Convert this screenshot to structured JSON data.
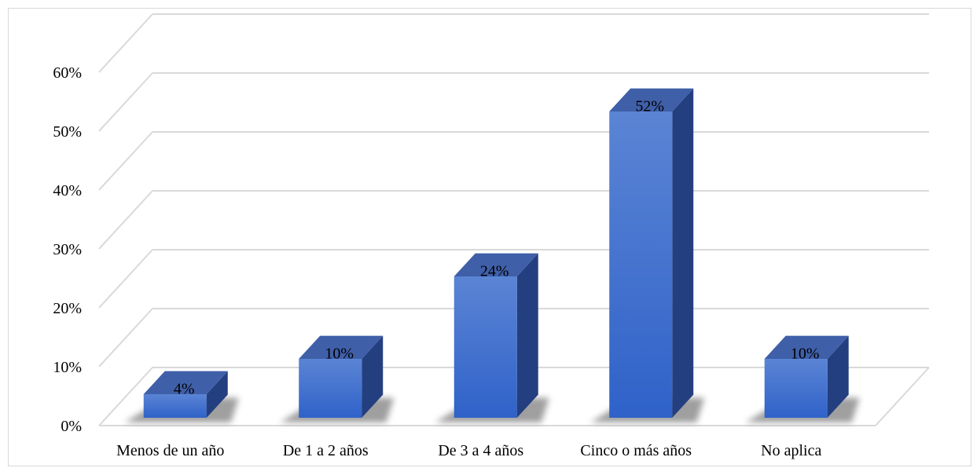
{
  "chart_data": {
    "type": "bar",
    "style": "3d-column",
    "categories": [
      "Menos de un año",
      "De 1 a 2 años",
      "De 3 a 4 años",
      "Cinco o más años",
      "No aplica"
    ],
    "values": [
      0.04,
      0.1,
      0.24,
      0.52,
      0.1
    ],
    "data_labels": [
      "4%",
      "10%",
      "24%",
      "52%",
      "10%"
    ],
    "ylim": [
      0,
      0.6
    ],
    "yticks": [
      0,
      0.1,
      0.2,
      0.3,
      0.4,
      0.5,
      0.6
    ],
    "ytick_labels": [
      "0%",
      "10%",
      "20%",
      "30%",
      "40%",
      "50%",
      "60%"
    ],
    "grid": true,
    "legend": "none",
    "colors": {
      "front_top": "#5b84d4",
      "front_bottom": "#2f62c9",
      "side": "#243f80",
      "top": "#3f5fa8",
      "gridline": "#d9d9d9",
      "shadow": "#7f7f7f"
    }
  }
}
